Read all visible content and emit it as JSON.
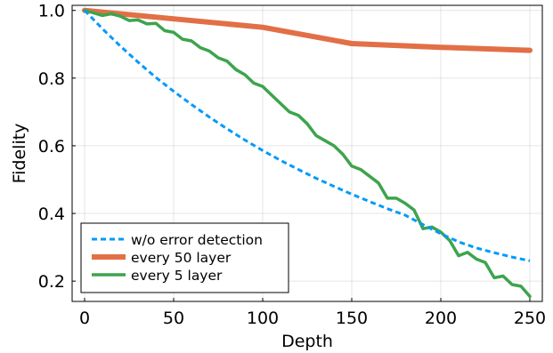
{
  "chart_data": {
    "type": "line",
    "xlabel": "Depth",
    "ylabel": "Fidelity",
    "xlim": [
      -7,
      257
    ],
    "ylim": [
      0.14,
      1.015
    ],
    "xticks": [
      0,
      50,
      100,
      150,
      200,
      250
    ],
    "yticks": [
      0.2,
      0.4,
      0.6,
      0.8,
      1.0
    ],
    "xtick_labels": [
      "0",
      "50",
      "100",
      "150",
      "200",
      "250"
    ],
    "ytick_labels": [
      "0.2",
      "0.4",
      "0.6",
      "0.8",
      "1.0"
    ],
    "grid": true,
    "legend_position": "bottom-left",
    "series": [
      {
        "name": "w/o error detection",
        "color": "#009AFA",
        "style": "dashed",
        "x": [
          0,
          10,
          20,
          30,
          40,
          50,
          60,
          70,
          80,
          90,
          100,
          110,
          120,
          130,
          140,
          150,
          160,
          170,
          180,
          190,
          200,
          210,
          220,
          230,
          240,
          250
        ],
        "y": [
          1.0,
          0.946,
          0.895,
          0.847,
          0.802,
          0.761,
          0.722,
          0.685,
          0.65,
          0.617,
          0.586,
          0.557,
          0.53,
          0.504,
          0.48,
          0.457,
          0.435,
          0.414,
          0.395,
          0.367,
          0.34,
          0.316,
          0.298,
          0.284,
          0.271,
          0.26
        ]
      },
      {
        "name": "every 50 layer",
        "color": "#E26F46",
        "style": "solid",
        "width": 6,
        "x": [
          0,
          50,
          100,
          150,
          200,
          250
        ],
        "y": [
          1.0,
          0.975,
          0.95,
          0.902,
          0.891,
          0.882
        ]
      },
      {
        "name": "every 5 layer",
        "color": "#3DA44D",
        "style": "solid",
        "width": 3.5,
        "x": [
          0,
          5,
          10,
          15,
          20,
          25,
          30,
          35,
          40,
          45,
          50,
          55,
          60,
          65,
          70,
          75,
          80,
          85,
          90,
          95,
          100,
          105,
          110,
          115,
          120,
          125,
          130,
          135,
          140,
          145,
          150,
          155,
          160,
          165,
          170,
          175,
          180,
          185,
          190,
          195,
          200,
          205,
          210,
          215,
          220,
          225,
          230,
          235,
          240,
          245,
          250
        ],
        "y": [
          1.0,
          0.993,
          0.985,
          0.99,
          0.983,
          0.97,
          0.972,
          0.96,
          0.962,
          0.94,
          0.935,
          0.915,
          0.91,
          0.89,
          0.88,
          0.86,
          0.85,
          0.825,
          0.81,
          0.785,
          0.775,
          0.75,
          0.725,
          0.7,
          0.69,
          0.665,
          0.63,
          0.615,
          0.6,
          0.575,
          0.54,
          0.53,
          0.51,
          0.49,
          0.445,
          0.445,
          0.43,
          0.41,
          0.355,
          0.36,
          0.345,
          0.32,
          0.275,
          0.285,
          0.265,
          0.255,
          0.21,
          0.215,
          0.19,
          0.185,
          0.155
        ]
      }
    ]
  }
}
